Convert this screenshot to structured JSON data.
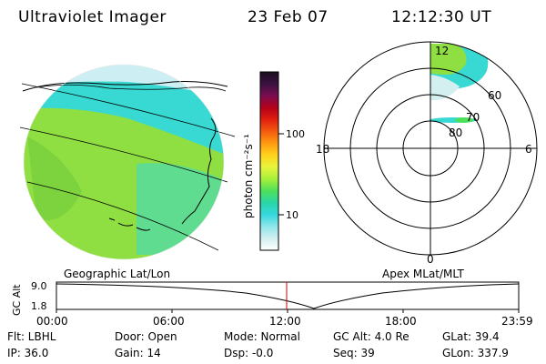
{
  "header": {
    "instrument": "Ultraviolet Imager",
    "date": "23 Feb 07",
    "time": "12:12:30 UT"
  },
  "colorbar": {
    "label": "photon cm⁻²s⁻¹",
    "ticks": [
      "100",
      "10"
    ],
    "colors": [
      "#1b0f1e",
      "#3a1140",
      "#7a0d50",
      "#b5001a",
      "#e02010",
      "#f55a10",
      "#ff9a10",
      "#ffd21e",
      "#e8f53c",
      "#a8f03a",
      "#4ee05a",
      "#2ad6a6",
      "#35d8df",
      "#8fe6ea",
      "#d4eff0",
      "#ffffff"
    ]
  },
  "left_panel": {
    "label": "Geographic Lat/Lon",
    "colors": {
      "base": "#8fdf42",
      "dark": "#6cc83a",
      "cyan": "#38d9d2",
      "light": "#cdeef2"
    }
  },
  "right_panel": {
    "label": "Apex MLat/MLT",
    "mlt_labels": {
      "top": "12",
      "left": "18",
      "right": "6",
      "bottom": "0"
    },
    "mlat_labels": [
      "60",
      "70",
      "80"
    ]
  },
  "altitude_plot": {
    "ylabel": "GC Alt",
    "yticks": [
      "9.0",
      "1.8"
    ],
    "xticks": [
      "00:00",
      "06:00",
      "12:00",
      "18:00",
      "23:59"
    ],
    "current_time_marker": "12:12",
    "marker_color": "#cc0000"
  },
  "footer": {
    "row1": {
      "flt": "Flt: LBHL",
      "door": "Door: Open",
      "mode": "Mode: Normal",
      "gc_alt": "GC Alt: 4.0 Re",
      "glat": "GLat:  39.4"
    },
    "row2": {
      "ip": "IP: 36.0",
      "gain": "Gain: 14",
      "dsp": "Dsp:  -0.0",
      "seq": "Seq: 39",
      "glon": "GLon: 337.9"
    }
  }
}
